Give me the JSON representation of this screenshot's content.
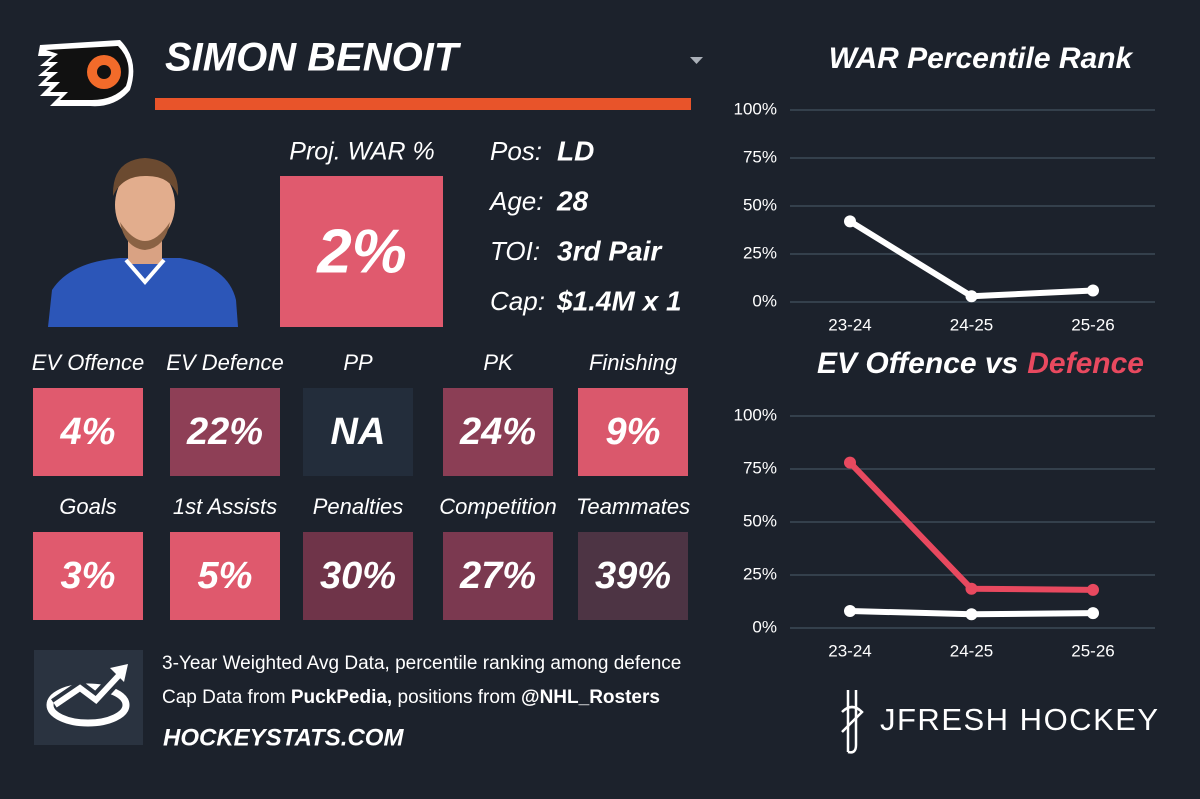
{
  "header": {
    "name": "SIMON BENOIT"
  },
  "projection": {
    "label": "Proj. WAR %",
    "value": "2%"
  },
  "info": [
    {
      "label": "Pos:",
      "value": "LD"
    },
    {
      "label": "Age:",
      "value": "28"
    },
    {
      "label": "TOI:",
      "value": "3rd Pair"
    },
    {
      "label": "Cap:",
      "value": "$1.4M x 1"
    }
  ],
  "tiles": [
    {
      "label": "EV Offence",
      "value": "4%",
      "color": "#e05a6e"
    },
    {
      "label": "EV Defence",
      "value": "22%",
      "color": "#8e3f56"
    },
    {
      "label": "PP",
      "value": "NA",
      "color": "#232d3b"
    },
    {
      "label": "PK",
      "value": "24%",
      "color": "#8b3e55"
    },
    {
      "label": "Finishing",
      "value": "9%",
      "color": "#da586c"
    },
    {
      "label": "Goals",
      "value": "3%",
      "color": "#e05a6e"
    },
    {
      "label": "1st Assists",
      "value": "5%",
      "color": "#df596d"
    },
    {
      "label": "Penalties",
      "value": "30%",
      "color": "#6f3449"
    },
    {
      "label": "Competition",
      "value": "27%",
      "color": "#7b3950"
    },
    {
      "label": "Teammates",
      "value": "39%",
      "color": "#4d3444"
    }
  ],
  "footer": {
    "line1": "3-Year Weighted Avg Data, percentile ranking among defence",
    "line2": [
      "Cap Data from ",
      "PuckPedia,",
      " positions from ",
      "@NHL_Rosters"
    ],
    "site": "HOCKEYSTATS.COM",
    "brand": "JFRESH HOCKEY"
  },
  "chart_data": [
    {
      "type": "line",
      "title": "WAR Percentile Rank",
      "categories": [
        "23-24",
        "24-25",
        "25-26"
      ],
      "values": [
        42,
        3,
        6
      ],
      "color": "#ffffff",
      "ylim": [
        0,
        100
      ],
      "yticks": [
        {
          "value": 0,
          "label": "0%"
        },
        {
          "value": 25,
          "label": "25%"
        },
        {
          "value": 50,
          "label": "50%"
        },
        {
          "value": 75,
          "label": "75%"
        },
        {
          "value": 100,
          "label": "100%"
        }
      ],
      "grid": true
    },
    {
      "type": "line",
      "title": "EV Offence vs",
      "title_highlight": "Defence",
      "categories": [
        "23-24",
        "24-25",
        "25-26"
      ],
      "series": [
        {
          "color": "#ffffff",
          "values": [
            8,
            6.5,
            7
          ]
        },
        {
          "color": "#e8495f",
          "values": [
            78,
            18.5,
            18
          ]
        }
      ],
      "ylim": [
        0,
        100
      ],
      "yticks": [
        {
          "value": 0,
          "label": "0%"
        },
        {
          "value": 25,
          "label": "25%"
        },
        {
          "value": 50,
          "label": "50%"
        },
        {
          "value": 75,
          "label": "75%"
        },
        {
          "value": 100,
          "label": "100%"
        }
      ],
      "grid": true
    }
  ]
}
